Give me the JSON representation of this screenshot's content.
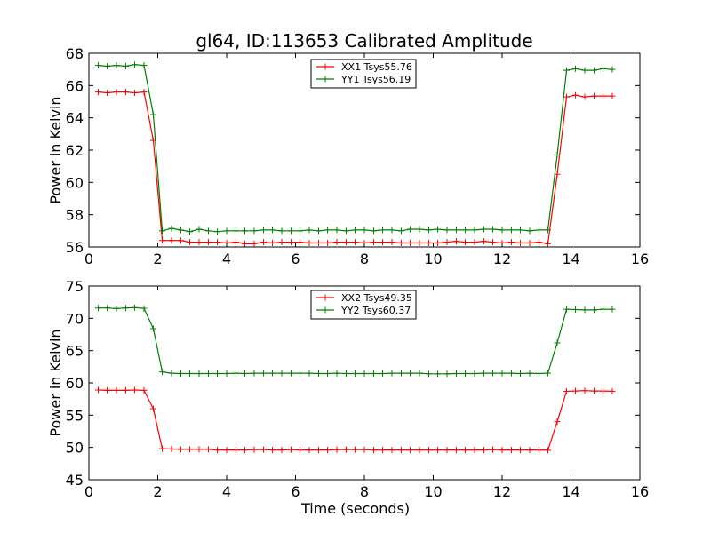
{
  "figure": {
    "title": "gl64, ID:113653 Calibrated Amplitude"
  },
  "chart_data": [
    {
      "type": "line",
      "title": "gl64, ID:113653 Calibrated Amplitude",
      "xlabel": "",
      "ylabel": "Power in Kelvin",
      "xlim": [
        0,
        16
      ],
      "ylim": [
        56,
        68
      ],
      "xticks": [
        0,
        2,
        4,
        6,
        8,
        10,
        12,
        14,
        16
      ],
      "yticks": [
        56,
        58,
        60,
        62,
        64,
        66,
        68
      ],
      "legend_position": "top-center",
      "grid": false,
      "x": [
        0.27,
        0.53,
        0.8,
        1.07,
        1.33,
        1.6,
        1.87,
        2.13,
        2.4,
        2.67,
        2.93,
        3.2,
        3.47,
        3.73,
        4.0,
        4.27,
        4.53,
        4.8,
        5.07,
        5.33,
        5.6,
        5.87,
        6.13,
        6.4,
        6.67,
        6.93,
        7.2,
        7.47,
        7.73,
        8.0,
        8.27,
        8.53,
        8.8,
        9.07,
        9.33,
        9.6,
        9.87,
        10.13,
        10.4,
        10.67,
        10.93,
        11.2,
        11.47,
        11.73,
        12.0,
        12.27,
        12.53,
        12.8,
        13.07,
        13.33,
        13.6,
        13.87,
        14.13,
        14.4,
        14.67,
        14.93,
        15.2
      ],
      "series": [
        {
          "name": "XX1 Tsys55.76",
          "color": "#ff0000",
          "values": [
            65.6,
            65.55,
            65.6,
            65.6,
            65.55,
            65.6,
            62.6,
            56.4,
            56.4,
            56.4,
            56.3,
            56.3,
            56.3,
            56.3,
            56.25,
            56.3,
            56.2,
            56.2,
            56.3,
            56.25,
            56.3,
            56.3,
            56.3,
            56.25,
            56.25,
            56.25,
            56.3,
            56.3,
            56.3,
            56.25,
            56.3,
            56.3,
            56.3,
            56.25,
            56.25,
            56.25,
            56.25,
            56.25,
            56.3,
            56.35,
            56.3,
            56.3,
            56.35,
            56.3,
            56.25,
            56.3,
            56.25,
            56.25,
            56.3,
            56.2,
            60.5,
            65.3,
            65.4,
            65.3,
            65.35,
            65.35,
            65.35
          ]
        },
        {
          "name": "YY1 Tsys56.19",
          "color": "#008000",
          "values": [
            67.25,
            67.2,
            67.25,
            67.2,
            67.3,
            67.25,
            64.2,
            57.0,
            57.15,
            57.05,
            56.95,
            57.1,
            57.0,
            56.95,
            57.0,
            57.0,
            57.0,
            57.0,
            57.05,
            57.05,
            57.0,
            57.0,
            57.0,
            57.05,
            57.0,
            57.05,
            57.05,
            57.0,
            57.05,
            57.05,
            57.0,
            57.05,
            57.05,
            57.0,
            57.1,
            57.1,
            57.05,
            57.1,
            57.05,
            57.05,
            57.05,
            57.05,
            57.1,
            57.1,
            57.05,
            57.05,
            57.05,
            57.0,
            57.05,
            57.05,
            61.7,
            66.95,
            67.05,
            66.95,
            66.95,
            67.05,
            67.0
          ]
        }
      ]
    },
    {
      "type": "line",
      "title": "",
      "xlabel": "Time (seconds)",
      "ylabel": "Power in Kelvin",
      "xlim": [
        0,
        16
      ],
      "ylim": [
        45,
        75
      ],
      "xticks": [
        0,
        2,
        4,
        6,
        8,
        10,
        12,
        14,
        16
      ],
      "yticks": [
        45,
        50,
        55,
        60,
        65,
        70,
        75
      ],
      "legend_position": "top-center",
      "grid": false,
      "x": [
        0.27,
        0.53,
        0.8,
        1.07,
        1.33,
        1.6,
        1.87,
        2.13,
        2.4,
        2.67,
        2.93,
        3.2,
        3.47,
        3.73,
        4.0,
        4.27,
        4.53,
        4.8,
        5.07,
        5.33,
        5.6,
        5.87,
        6.13,
        6.4,
        6.67,
        6.93,
        7.2,
        7.47,
        7.73,
        8.0,
        8.27,
        8.53,
        8.8,
        9.07,
        9.33,
        9.6,
        9.87,
        10.13,
        10.4,
        10.67,
        10.93,
        11.2,
        11.47,
        11.73,
        12.0,
        12.27,
        12.53,
        12.8,
        13.07,
        13.33,
        13.6,
        13.87,
        14.13,
        14.4,
        14.67,
        14.93,
        15.2
      ],
      "series": [
        {
          "name": "XX2 Tsys49.35",
          "color": "#ff0000",
          "values": [
            58.9,
            58.85,
            58.85,
            58.85,
            58.9,
            58.85,
            56.0,
            49.8,
            49.75,
            49.7,
            49.7,
            49.7,
            49.7,
            49.6,
            49.6,
            49.6,
            49.6,
            49.65,
            49.65,
            49.6,
            49.6,
            49.65,
            49.6,
            49.6,
            49.6,
            49.6,
            49.65,
            49.65,
            49.65,
            49.65,
            49.6,
            49.6,
            49.6,
            49.6,
            49.6,
            49.6,
            49.6,
            49.6,
            49.6,
            49.6,
            49.6,
            49.6,
            49.6,
            49.65,
            49.6,
            49.6,
            49.6,
            49.6,
            49.6,
            49.55,
            54.0,
            58.7,
            58.75,
            58.8,
            58.75,
            58.75,
            58.7
          ]
        },
        {
          "name": "YY2 Tsys60.37",
          "color": "#008000",
          "values": [
            71.6,
            71.6,
            71.5,
            71.6,
            71.65,
            71.55,
            68.4,
            61.7,
            61.5,
            61.45,
            61.45,
            61.45,
            61.45,
            61.45,
            61.45,
            61.5,
            61.45,
            61.5,
            61.5,
            61.5,
            61.5,
            61.5,
            61.5,
            61.5,
            61.45,
            61.45,
            61.5,
            61.45,
            61.45,
            61.45,
            61.45,
            61.45,
            61.5,
            61.5,
            61.5,
            61.5,
            61.4,
            61.4,
            61.4,
            61.45,
            61.45,
            61.45,
            61.5,
            61.5,
            61.5,
            61.5,
            61.45,
            61.5,
            61.45,
            61.5,
            66.2,
            71.4,
            71.35,
            71.3,
            71.3,
            71.4,
            71.4
          ]
        }
      ]
    }
  ]
}
